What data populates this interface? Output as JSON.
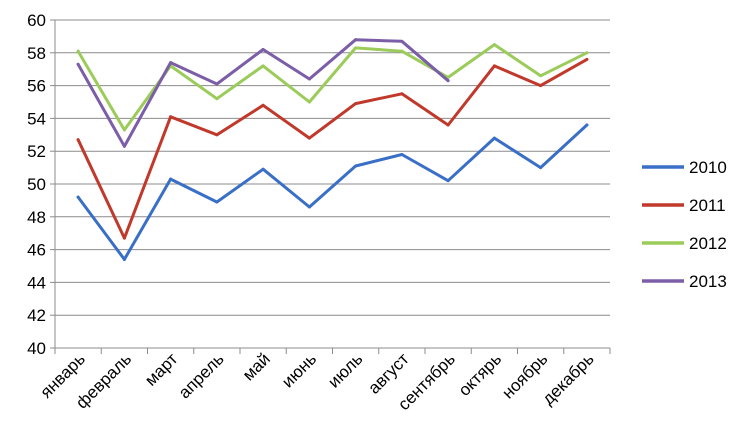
{
  "chart_data": {
    "type": "line",
    "title": "",
    "xlabel": "",
    "ylabel": "",
    "ylim": [
      40,
      60
    ],
    "yticks": [
      40,
      42,
      44,
      46,
      48,
      50,
      52,
      54,
      56,
      58,
      60
    ],
    "grid": true,
    "legend_position": "right",
    "categories": [
      "январь",
      "февраль",
      "март",
      "апрель",
      "май",
      "июнь",
      "июль",
      "август",
      "сентябрь",
      "октярь",
      "ноябрь",
      "декабрь"
    ],
    "series": [
      {
        "name": "2010",
        "color": "#3a6fc7",
        "values": [
          49.2,
          45.4,
          50.3,
          48.9,
          50.9,
          48.6,
          51.1,
          51.8,
          50.2,
          52.8,
          51.0,
          53.6
        ]
      },
      {
        "name": "2011",
        "color": "#c0392b",
        "values": [
          52.7,
          46.7,
          54.1,
          53.0,
          54.8,
          52.8,
          54.9,
          55.5,
          53.6,
          57.2,
          56.0,
          57.6
        ]
      },
      {
        "name": "2012",
        "color": "#9bcc5a",
        "values": [
          58.1,
          53.3,
          57.2,
          55.2,
          57.2,
          55.0,
          58.3,
          58.1,
          56.5,
          58.5,
          56.6,
          58.0
        ]
      },
      {
        "name": "2013",
        "color": "#7b5ea7",
        "values": [
          57.3,
          52.3,
          57.4,
          56.1,
          58.2,
          56.4,
          58.8,
          58.7,
          56.3,
          null,
          null,
          null
        ]
      }
    ]
  }
}
